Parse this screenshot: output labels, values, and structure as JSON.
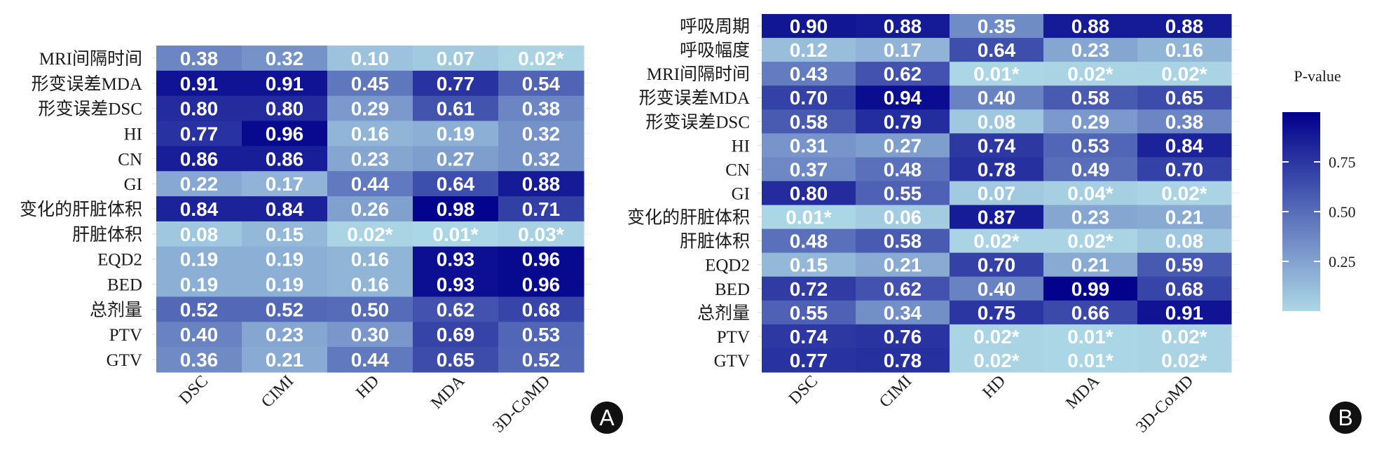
{
  "chart_data": [
    {
      "type": "heatmap",
      "panel_label": "A",
      "columns": [
        "DSC",
        "CIMI",
        "HD",
        "MDA",
        "3D-CoMD"
      ],
      "rows": [
        "MRI间隔时间",
        "形变误差MDA",
        "形变误差DSC",
        "HI",
        "CN",
        "GI",
        "变化的肝脏体积",
        "肝脏体积",
        "EQD2",
        "BED",
        "总剂量",
        "PTV",
        "GTV"
      ],
      "values": [
        [
          0.38,
          0.32,
          0.1,
          0.07,
          0.02
        ],
        [
          0.91,
          0.91,
          0.45,
          0.77,
          0.54
        ],
        [
          0.8,
          0.8,
          0.29,
          0.61,
          0.38
        ],
        [
          0.77,
          0.96,
          0.16,
          0.19,
          0.32
        ],
        [
          0.86,
          0.86,
          0.23,
          0.27,
          0.32
        ],
        [
          0.22,
          0.17,
          0.44,
          0.64,
          0.88
        ],
        [
          0.84,
          0.84,
          0.26,
          0.98,
          0.71
        ],
        [
          0.08,
          0.15,
          0.02,
          0.01,
          0.03
        ],
        [
          0.19,
          0.19,
          0.16,
          0.93,
          0.96
        ],
        [
          0.19,
          0.19,
          0.16,
          0.93,
          0.96
        ],
        [
          0.52,
          0.52,
          0.5,
          0.62,
          0.68
        ],
        [
          0.4,
          0.23,
          0.3,
          0.69,
          0.53
        ],
        [
          0.36,
          0.21,
          0.44,
          0.65,
          0.52
        ]
      ],
      "labels": [
        [
          "0.38",
          "0.32",
          "0.10",
          "0.07",
          "0.02*"
        ],
        [
          "0.91",
          "0.91",
          "0.45",
          "0.77",
          "0.54"
        ],
        [
          "0.80",
          "0.80",
          "0.29",
          "0.61",
          "0.38"
        ],
        [
          "0.77",
          "0.96",
          "0.16",
          "0.19",
          "0.32"
        ],
        [
          "0.86",
          "0.86",
          "0.23",
          "0.27",
          "0.32"
        ],
        [
          "0.22",
          "0.17",
          "0.44",
          "0.64",
          "0.88"
        ],
        [
          "0.84",
          "0.84",
          "0.26",
          "0.98",
          "0.71"
        ],
        [
          "0.08",
          "0.15",
          "0.02*",
          "0.01*",
          "0.03*"
        ],
        [
          "0.19",
          "0.19",
          "0.16",
          "0.93",
          "0.96"
        ],
        [
          "0.19",
          "0.19",
          "0.16",
          "0.93",
          "0.96"
        ],
        [
          "0.52",
          "0.52",
          "0.50",
          "0.62",
          "0.68"
        ],
        [
          "0.40",
          "0.23",
          "0.30",
          "0.69",
          "0.53"
        ],
        [
          "0.36",
          "0.21",
          "0.44",
          "0.65",
          "0.52"
        ]
      ]
    },
    {
      "type": "heatmap",
      "panel_label": "B",
      "columns": [
        "DSC",
        "CIMI",
        "HD",
        "MDA",
        "3D-CoMD"
      ],
      "rows": [
        "呼吸周期",
        "呼吸幅度",
        "MRI间隔时间",
        "形变误差MDA",
        "形变误差DSC",
        "HI",
        "CN",
        "GI",
        "变化的肝脏体积",
        "肝脏体积",
        "EQD2",
        "BED",
        "总剂量",
        "PTV",
        "GTV"
      ],
      "values": [
        [
          0.9,
          0.88,
          0.35,
          0.88,
          0.88
        ],
        [
          0.12,
          0.17,
          0.64,
          0.23,
          0.16
        ],
        [
          0.43,
          0.62,
          0.01,
          0.02,
          0.02
        ],
        [
          0.7,
          0.94,
          0.4,
          0.58,
          0.65
        ],
        [
          0.58,
          0.79,
          0.08,
          0.29,
          0.38
        ],
        [
          0.31,
          0.27,
          0.74,
          0.53,
          0.84
        ],
        [
          0.37,
          0.48,
          0.78,
          0.49,
          0.7
        ],
        [
          0.8,
          0.55,
          0.07,
          0.04,
          0.02
        ],
        [
          0.01,
          0.06,
          0.87,
          0.23,
          0.21
        ],
        [
          0.48,
          0.58,
          0.02,
          0.02,
          0.08
        ],
        [
          0.15,
          0.21,
          0.7,
          0.21,
          0.59
        ],
        [
          0.72,
          0.62,
          0.4,
          0.99,
          0.68
        ],
        [
          0.55,
          0.34,
          0.75,
          0.66,
          0.91
        ],
        [
          0.74,
          0.76,
          0.02,
          0.01,
          0.02
        ],
        [
          0.77,
          0.78,
          0.02,
          0.01,
          0.02
        ]
      ],
      "labels": [
        [
          "0.90",
          "0.88",
          "0.35",
          "0.88",
          "0.88"
        ],
        [
          "0.12",
          "0.17",
          "0.64",
          "0.23",
          "0.16"
        ],
        [
          "0.43",
          "0.62",
          "0.01*",
          "0.02*",
          "0.02*"
        ],
        [
          "0.70",
          "0.94",
          "0.40",
          "0.58",
          "0.65"
        ],
        [
          "0.58",
          "0.79",
          "0.08",
          "0.29",
          "0.38"
        ],
        [
          "0.31",
          "0.27",
          "0.74",
          "0.53",
          "0.84"
        ],
        [
          "0.37",
          "0.48",
          "0.78",
          "0.49",
          "0.70"
        ],
        [
          "0.80",
          "0.55",
          "0.07",
          "0.04*",
          "0.02*"
        ],
        [
          "0.01*",
          "0.06",
          "0.87",
          "0.23",
          "0.21"
        ],
        [
          "0.48",
          "0.58",
          "0.02*",
          "0.02*",
          "0.08"
        ],
        [
          "0.15",
          "0.21",
          "0.70",
          "0.21",
          "0.59"
        ],
        [
          "0.72",
          "0.62",
          "0.40",
          "0.99",
          "0.68"
        ],
        [
          "0.55",
          "0.34",
          "0.75",
          "0.66",
          "0.91"
        ],
        [
          "0.74",
          "0.76",
          "0.02*",
          "0.01*",
          "0.02*"
        ],
        [
          "0.77",
          "0.78",
          "0.02*",
          "0.01*",
          "0.02*"
        ]
      ]
    }
  ],
  "legend": {
    "title": "P-value",
    "ticks": [
      "0.75",
      "0.50",
      "0.25"
    ],
    "tick_values": [
      0.75,
      0.5,
      0.25
    ],
    "range": [
      0.0,
      1.0
    ],
    "color_low": "#add8e6",
    "color_high": "#00008b"
  },
  "colors": {
    "cell_text": "#ffffff",
    "label_text": "#1a1a1a",
    "badge_bg": "#111111",
    "badge_text": "#ffffff"
  }
}
